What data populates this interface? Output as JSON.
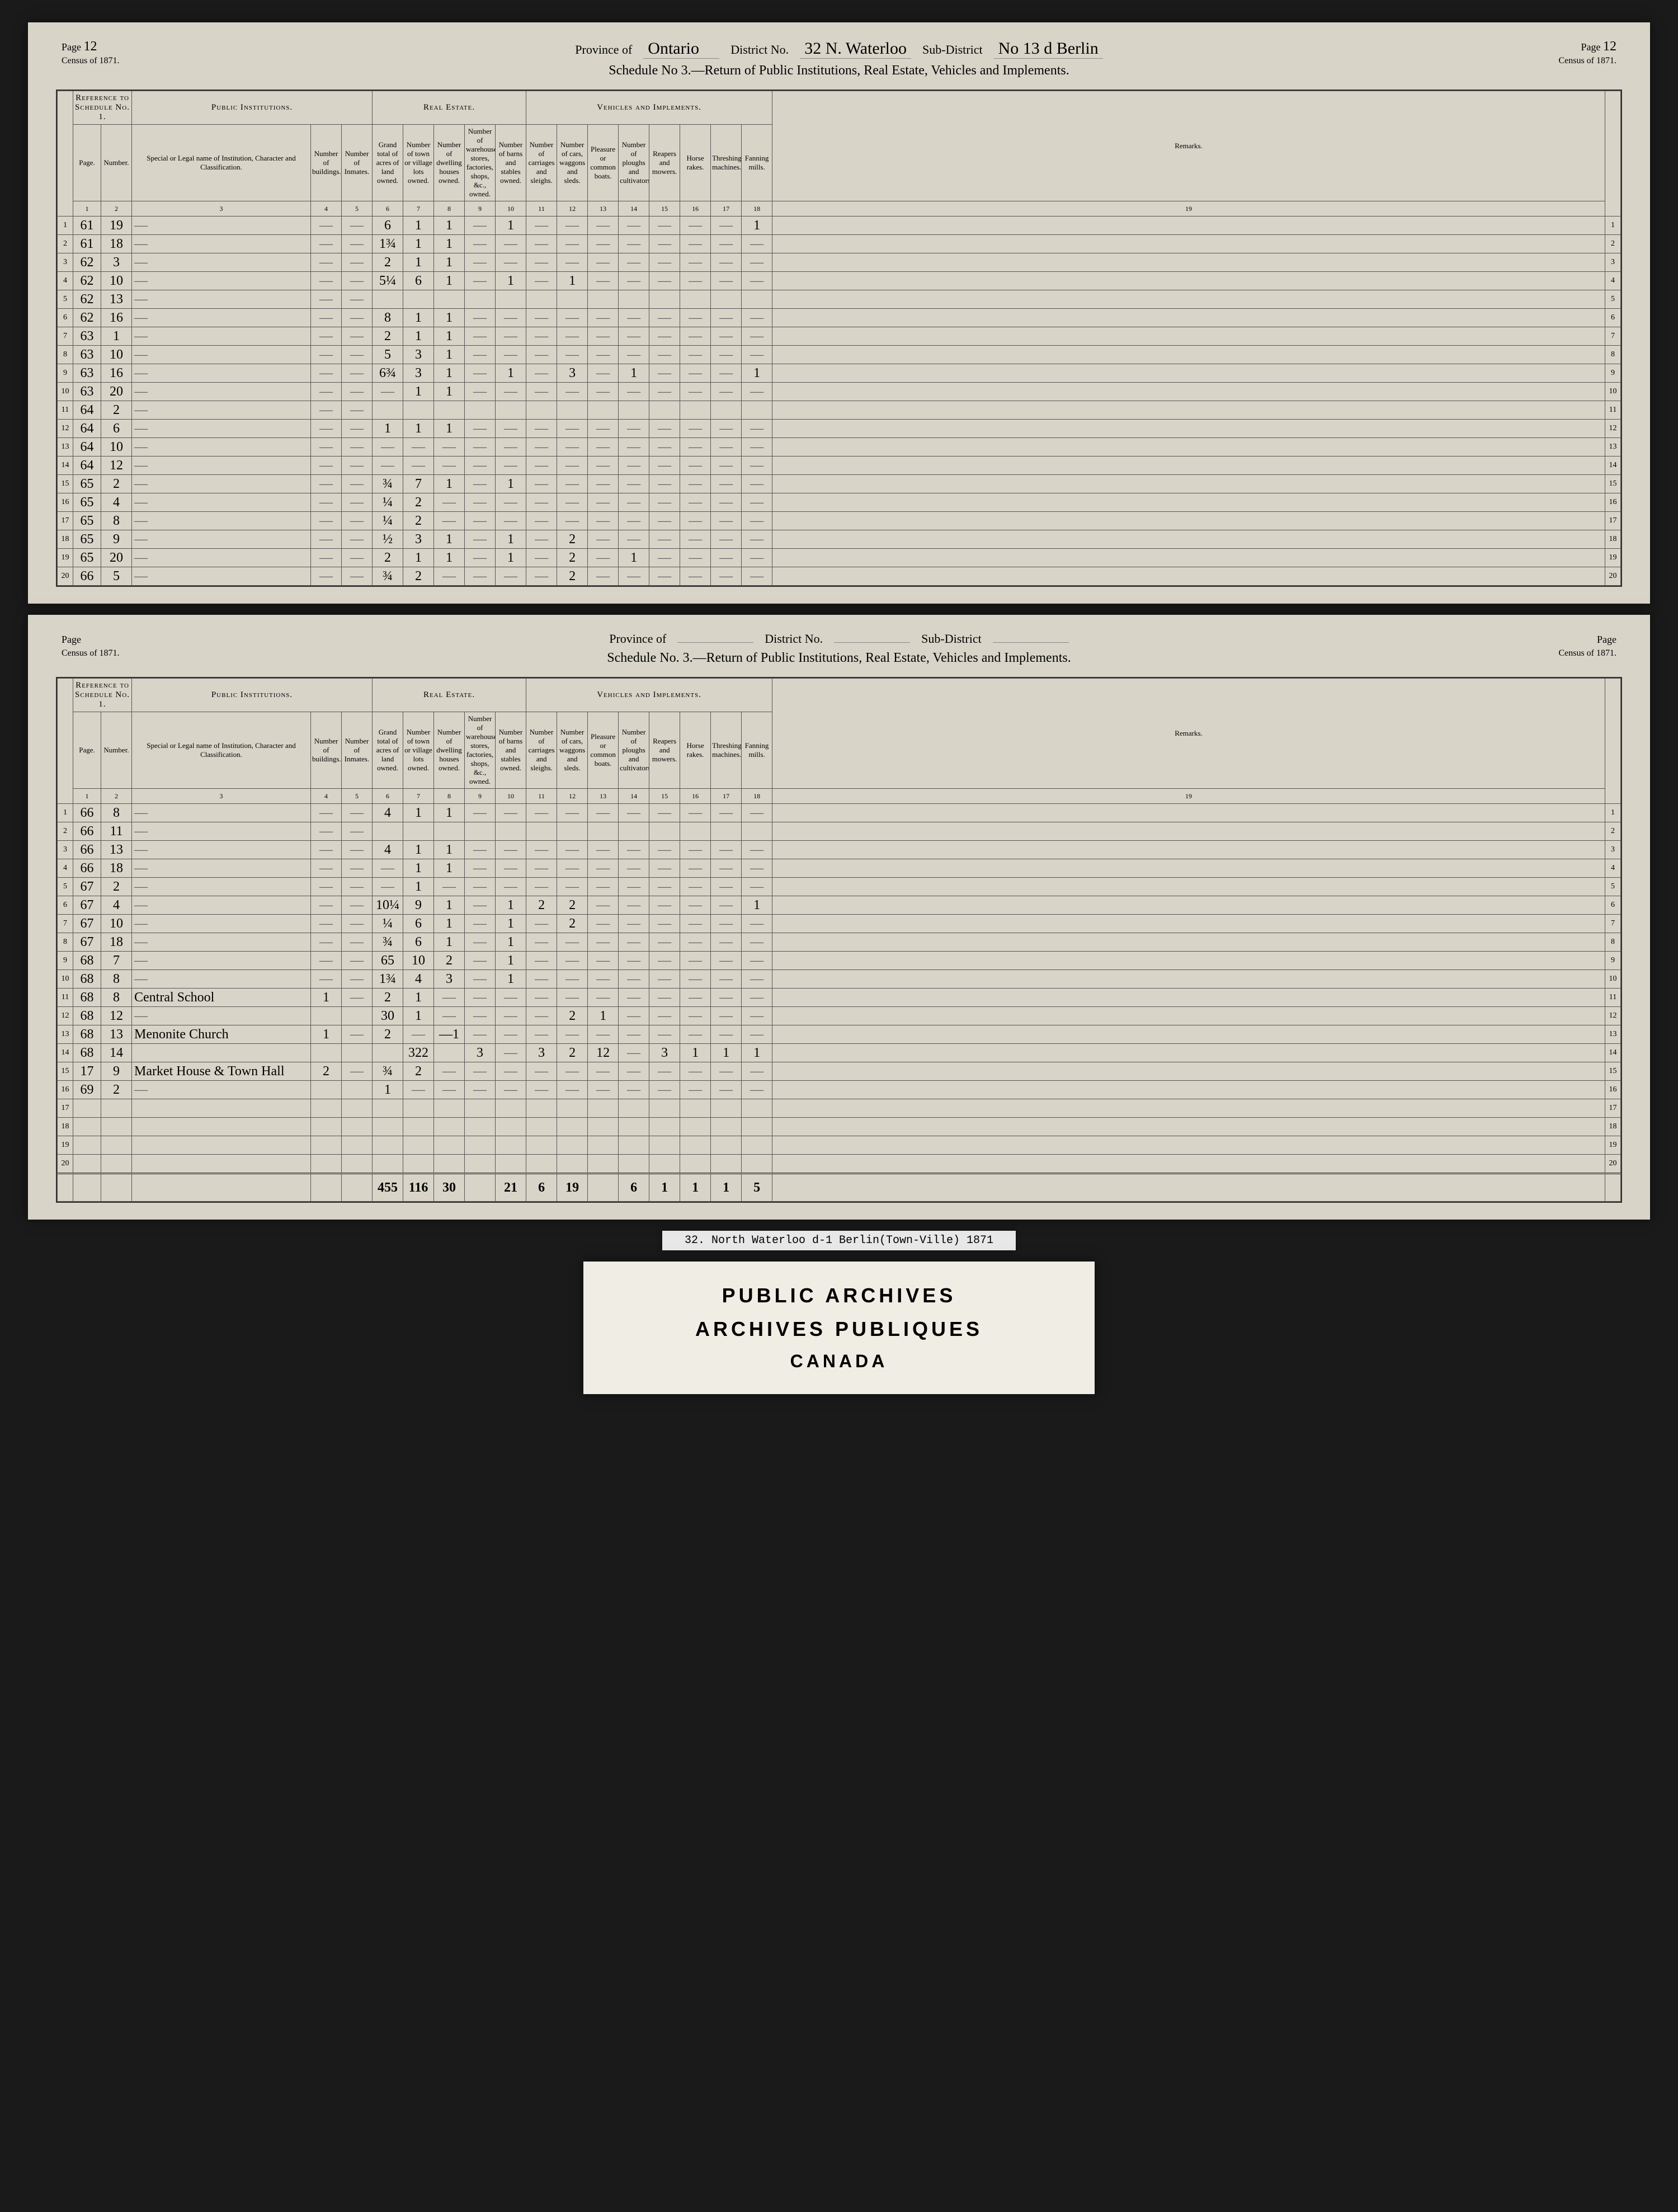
{
  "page1": {
    "page_num_left": "12",
    "province_label": "Province of",
    "province": "Ontario",
    "district_label": "District No.",
    "district": "32 N. Waterloo",
    "subdistrict_label": "Sub-District",
    "subdistrict": "No 13 d Berlin",
    "page_num_right": "12",
    "census_label": "Census of 1871.",
    "title": "Schedule No 3.—Return of Public Institutions, Real Estate, Vehicles and Implements.",
    "section_headers": {
      "ref": "Reference to Schedule No. 1.",
      "pub": "Public Institutions.",
      "real": "Real Estate.",
      "veh": "Vehicles and Implements."
    },
    "col_headers": {
      "c1": "Page.",
      "c2": "Number.",
      "c3": "Special or Legal name of Institution, Character and Classification.",
      "c4": "Number of buildings.",
      "c5": "Number of Inmates.",
      "c6": "Grand total of acres of land owned.",
      "c7": "Number of town or village lots owned.",
      "c8": "Number of dwelling houses owned.",
      "c9": "Number of warehouses, stores, factories, shops, &c., owned.",
      "c10": "Number of barns and stables owned.",
      "c11": "Number of carriages and sleighs.",
      "c12": "Number of cars, waggons and sleds.",
      "c13": "Pleasure or common boats.",
      "c14": "Number of ploughs and cultivators.",
      "c15": "Reapers and mowers.",
      "c16": "Horse rakes.",
      "c17": "Threshing machines.",
      "c18": "Fanning mills.",
      "c19": "Remarks."
    },
    "rows": [
      {
        "n": "1",
        "page": "61",
        "num": "19",
        "inst": "—",
        "c4": "—",
        "c5": "—",
        "c6": "6",
        "c7": "1",
        "c8": "1",
        "c9": "—",
        "c10": "1",
        "c11": "—",
        "c12": "—",
        "c13": "—",
        "c14": "—",
        "c15": "—",
        "c16": "—",
        "c17": "—",
        "c18": "1"
      },
      {
        "n": "2",
        "page": "61",
        "num": "18",
        "inst": "—",
        "c4": "—",
        "c5": "—",
        "c6": "1¾",
        "c7": "1",
        "c8": "1",
        "c9": "—",
        "c10": "—",
        "c11": "—",
        "c12": "—",
        "c13": "—",
        "c14": "—",
        "c15": "—",
        "c16": "—",
        "c17": "—",
        "c18": "—"
      },
      {
        "n": "3",
        "page": "62",
        "num": "3",
        "inst": "—",
        "c4": "—",
        "c5": "—",
        "c6": "2",
        "c7": "1",
        "c8": "1",
        "c9": "—",
        "c10": "—",
        "c11": "—",
        "c12": "—",
        "c13": "—",
        "c14": "—",
        "c15": "—",
        "c16": "—",
        "c17": "—",
        "c18": "—"
      },
      {
        "n": "4",
        "page": "62",
        "num": "10",
        "inst": "—",
        "c4": "—",
        "c5": "—",
        "c6": "5¼",
        "c7": "6",
        "c8": "1",
        "c9": "—",
        "c10": "1",
        "c11": "—",
        "c12": "1",
        "c13": "—",
        "c14": "—",
        "c15": "—",
        "c16": "—",
        "c17": "—",
        "c18": "—"
      },
      {
        "n": "5",
        "page": "62",
        "num": "13",
        "inst": "—",
        "c4": "—",
        "c5": "—",
        "c6": "",
        "c7": "",
        "c8": "",
        "c9": "",
        "c10": "",
        "c11": "",
        "c12": "",
        "c13": "",
        "c14": "",
        "c15": "",
        "c16": "",
        "c17": "",
        "c18": ""
      },
      {
        "n": "6",
        "page": "62",
        "num": "16",
        "inst": "—",
        "c4": "—",
        "c5": "—",
        "c6": "8",
        "c7": "1",
        "c8": "1",
        "c9": "—",
        "c10": "—",
        "c11": "—",
        "c12": "—",
        "c13": "—",
        "c14": "—",
        "c15": "—",
        "c16": "—",
        "c17": "—",
        "c18": "—"
      },
      {
        "n": "7",
        "page": "63",
        "num": "1",
        "inst": "—",
        "c4": "—",
        "c5": "—",
        "c6": "2",
        "c7": "1",
        "c8": "1",
        "c9": "—",
        "c10": "—",
        "c11": "—",
        "c12": "—",
        "c13": "—",
        "c14": "—",
        "c15": "—",
        "c16": "—",
        "c17": "—",
        "c18": "—"
      },
      {
        "n": "8",
        "page": "63",
        "num": "10",
        "inst": "—",
        "c4": "—",
        "c5": "—",
        "c6": "5",
        "c7": "3",
        "c8": "1",
        "c9": "—",
        "c10": "—",
        "c11": "—",
        "c12": "—",
        "c13": "—",
        "c14": "—",
        "c15": "—",
        "c16": "—",
        "c17": "—",
        "c18": "—"
      },
      {
        "n": "9",
        "page": "63",
        "num": "16",
        "inst": "—",
        "c4": "—",
        "c5": "—",
        "c6": "6¾",
        "c7": "3",
        "c8": "1",
        "c9": "—",
        "c10": "1",
        "c11": "—",
        "c12": "3",
        "c13": "—",
        "c14": "1",
        "c15": "—",
        "c16": "—",
        "c17": "—",
        "c18": "1"
      },
      {
        "n": "10",
        "page": "63",
        "num": "20",
        "inst": "—",
        "c4": "—",
        "c5": "—",
        "c6": "—",
        "c7": "1",
        "c8": "1",
        "c9": "—",
        "c10": "—",
        "c11": "—",
        "c12": "—",
        "c13": "—",
        "c14": "—",
        "c15": "—",
        "c16": "—",
        "c17": "—",
        "c18": "—"
      },
      {
        "n": "11",
        "page": "64",
        "num": "2",
        "inst": "—",
        "c4": "—",
        "c5": "—",
        "c6": "",
        "c7": "",
        "c8": "",
        "c9": "",
        "c10": "",
        "c11": "",
        "c12": "",
        "c13": "",
        "c14": "",
        "c15": "",
        "c16": "",
        "c17": "",
        "c18": ""
      },
      {
        "n": "12",
        "page": "64",
        "num": "6",
        "inst": "—",
        "c4": "—",
        "c5": "—",
        "c6": "1",
        "c7": "1",
        "c8": "1",
        "c9": "—",
        "c10": "—",
        "c11": "—",
        "c12": "—",
        "c13": "—",
        "c14": "—",
        "c15": "—",
        "c16": "—",
        "c17": "—",
        "c18": "—"
      },
      {
        "n": "13",
        "page": "64",
        "num": "10",
        "inst": "—",
        "c4": "—",
        "c5": "—",
        "c6": "—",
        "c7": "—",
        "c8": "—",
        "c9": "—",
        "c10": "—",
        "c11": "—",
        "c12": "—",
        "c13": "—",
        "c14": "—",
        "c15": "—",
        "c16": "—",
        "c17": "—",
        "c18": "—"
      },
      {
        "n": "14",
        "page": "64",
        "num": "12",
        "inst": "—",
        "c4": "—",
        "c5": "—",
        "c6": "—",
        "c7": "—",
        "c8": "—",
        "c9": "—",
        "c10": "—",
        "c11": "—",
        "c12": "—",
        "c13": "—",
        "c14": "—",
        "c15": "—",
        "c16": "—",
        "c17": "—",
        "c18": "—"
      },
      {
        "n": "15",
        "page": "65",
        "num": "2",
        "inst": "—",
        "c4": "—",
        "c5": "—",
        "c6": "¾",
        "c7": "7",
        "c8": "1",
        "c9": "—",
        "c10": "1",
        "c11": "—",
        "c12": "—",
        "c13": "—",
        "c14": "—",
        "c15": "—",
        "c16": "—",
        "c17": "—",
        "c18": "—"
      },
      {
        "n": "16",
        "page": "65",
        "num": "4",
        "inst": "—",
        "c4": "—",
        "c5": "—",
        "c6": "¼",
        "c7": "2",
        "c8": "—",
        "c9": "—",
        "c10": "—",
        "c11": "—",
        "c12": "—",
        "c13": "—",
        "c14": "—",
        "c15": "—",
        "c16": "—",
        "c17": "—",
        "c18": "—"
      },
      {
        "n": "17",
        "page": "65",
        "num": "8",
        "inst": "—",
        "c4": "—",
        "c5": "—",
        "c6": "¼",
        "c7": "2",
        "c8": "—",
        "c9": "—",
        "c10": "—",
        "c11": "—",
        "c12": "—",
        "c13": "—",
        "c14": "—",
        "c15": "—",
        "c16": "—",
        "c17": "—",
        "c18": "—"
      },
      {
        "n": "18",
        "page": "65",
        "num": "9",
        "inst": "—",
        "c4": "—",
        "c5": "—",
        "c6": "½",
        "c7": "3",
        "c8": "1",
        "c9": "—",
        "c10": "1",
        "c11": "—",
        "c12": "2",
        "c13": "—",
        "c14": "—",
        "c15": "—",
        "c16": "—",
        "c17": "—",
        "c18": "—"
      },
      {
        "n": "19",
        "page": "65",
        "num": "20",
        "inst": "—",
        "c4": "—",
        "c5": "—",
        "c6": "2",
        "c7": "1",
        "c8": "1",
        "c9": "—",
        "c10": "1",
        "c11": "—",
        "c12": "2",
        "c13": "—",
        "c14": "1",
        "c15": "—",
        "c16": "—",
        "c17": "—",
        "c18": "—"
      },
      {
        "n": "20",
        "page": "66",
        "num": "5",
        "inst": "—",
        "c4": "—",
        "c5": "—",
        "c6": "¾",
        "c7": "2",
        "c8": "—",
        "c9": "—",
        "c10": "—",
        "c11": "—",
        "c12": "2",
        "c13": "—",
        "c14": "—",
        "c15": "—",
        "c16": "—",
        "c17": "—",
        "c18": "—"
      }
    ]
  },
  "page2": {
    "page_num_left": "",
    "province_label": "Province of",
    "province": "",
    "district_label": "District No.",
    "district": "",
    "subdistrict_label": "Sub-District",
    "subdistrict": "",
    "page_num_right": "",
    "census_label": "Census of 1871.",
    "title": "Schedule No. 3.—Return of Public Institutions, Real Estate, Vehicles and Implements.",
    "rows": [
      {
        "n": "1",
        "page": "66",
        "num": "8",
        "inst": "—",
        "c4": "—",
        "c5": "—",
        "c6": "4",
        "c7": "1",
        "c8": "1",
        "c9": "—",
        "c10": "—",
        "c11": "—",
        "c12": "—",
        "c13": "—",
        "c14": "—",
        "c15": "—",
        "c16": "—",
        "c17": "—",
        "c18": "—"
      },
      {
        "n": "2",
        "page": "66",
        "num": "11",
        "inst": "—",
        "c4": "—",
        "c5": "—",
        "c6": "",
        "c7": "",
        "c8": "",
        "c9": "",
        "c10": "",
        "c11": "",
        "c12": "",
        "c13": "",
        "c14": "",
        "c15": "",
        "c16": "",
        "c17": "",
        "c18": ""
      },
      {
        "n": "3",
        "page": "66",
        "num": "13",
        "inst": "—",
        "c4": "—",
        "c5": "—",
        "c6": "4",
        "c7": "1",
        "c8": "1",
        "c9": "—",
        "c10": "—",
        "c11": "—",
        "c12": "—",
        "c13": "—",
        "c14": "—",
        "c15": "—",
        "c16": "—",
        "c17": "—",
        "c18": "—"
      },
      {
        "n": "4",
        "page": "66",
        "num": "18",
        "inst": "—",
        "c4": "—",
        "c5": "—",
        "c6": "—",
        "c7": "1",
        "c8": "1",
        "c9": "—",
        "c10": "—",
        "c11": "—",
        "c12": "—",
        "c13": "—",
        "c14": "—",
        "c15": "—",
        "c16": "—",
        "c17": "—",
        "c18": "—"
      },
      {
        "n": "5",
        "page": "67",
        "num": "2",
        "inst": "—",
        "c4": "—",
        "c5": "—",
        "c6": "—",
        "c7": "1",
        "c8": "—",
        "c9": "—",
        "c10": "—",
        "c11": "—",
        "c12": "—",
        "c13": "—",
        "c14": "—",
        "c15": "—",
        "c16": "—",
        "c17": "—",
        "c18": "—"
      },
      {
        "n": "6",
        "page": "67",
        "num": "4",
        "inst": "—",
        "c4": "—",
        "c5": "—",
        "c6": "10¼",
        "c7": "9",
        "c8": "1",
        "c9": "—",
        "c10": "1",
        "c11": "2",
        "c12": "2",
        "c13": "—",
        "c14": "—",
        "c15": "—",
        "c16": "—",
        "c17": "—",
        "c18": "1"
      },
      {
        "n": "7",
        "page": "67",
        "num": "10",
        "inst": "—",
        "c4": "—",
        "c5": "—",
        "c6": "¼",
        "c7": "6",
        "c8": "1",
        "c9": "—",
        "c10": "1",
        "c11": "—",
        "c12": "2",
        "c13": "—",
        "c14": "—",
        "c15": "—",
        "c16": "—",
        "c17": "—",
        "c18": "—"
      },
      {
        "n": "8",
        "page": "67",
        "num": "18",
        "inst": "—",
        "c4": "—",
        "c5": "—",
        "c6": "¾",
        "c7": "6",
        "c8": "1",
        "c9": "—",
        "c10": "1",
        "c11": "—",
        "c12": "—",
        "c13": "—",
        "c14": "—",
        "c15": "—",
        "c16": "—",
        "c17": "—",
        "c18": "—"
      },
      {
        "n": "9",
        "page": "68",
        "num": "7",
        "inst": "—",
        "c4": "—",
        "c5": "—",
        "c6": "65",
        "c7": "10",
        "c8": "2",
        "c9": "—",
        "c10": "1",
        "c11": "—",
        "c12": "—",
        "c13": "—",
        "c14": "—",
        "c15": "—",
        "c16": "—",
        "c17": "—",
        "c18": "—"
      },
      {
        "n": "10",
        "page": "68",
        "num": "8",
        "inst": "—",
        "c4": "—",
        "c5": "—",
        "c6": "1¾",
        "c7": "4",
        "c8": "3",
        "c9": "—",
        "c10": "1",
        "c11": "—",
        "c12": "—",
        "c13": "—",
        "c14": "—",
        "c15": "—",
        "c16": "—",
        "c17": "—",
        "c18": "—"
      },
      {
        "n": "11",
        "page": "68",
        "num": "8",
        "inst": "Central School",
        "c4": "1",
        "c5": "—",
        "c6": "2",
        "c7": "1",
        "c8": "—",
        "c9": "—",
        "c10": "—",
        "c11": "—",
        "c12": "—",
        "c13": "—",
        "c14": "—",
        "c15": "—",
        "c16": "—",
        "c17": "—",
        "c18": "—"
      },
      {
        "n": "12",
        "page": "68",
        "num": "12",
        "inst": "—",
        "c4": "",
        "c5": "",
        "c6": "30",
        "c7": "1",
        "c8": "—",
        "c9": "—",
        "c10": "—",
        "c11": "—",
        "c12": "2",
        "c13": "1",
        "c14": "—",
        "c15": "—",
        "c16": "—",
        "c17": "—",
        "c18": "—"
      },
      {
        "n": "13",
        "page": "68",
        "num": "13",
        "inst": "Menonite Church",
        "c4": "1",
        "c5": "—",
        "c6": "2",
        "c7": "—",
        "c8": "—1",
        "c9": "—",
        "c10": "—",
        "c11": "—",
        "c12": "—",
        "c13": "—",
        "c14": "—",
        "c15": "—",
        "c16": "—",
        "c17": "—",
        "c18": "—"
      },
      {
        "n": "14",
        "page": "68",
        "num": "14",
        "inst": "",
        "c4": "",
        "c5": "",
        "c6": "",
        "c7": "322",
        "c8": "",
        "c9": "3",
        "c10": "—",
        "c11": "3",
        "c12": "2",
        "c13": "12",
        "c14": "—",
        "c15": "3",
        "c16": "1",
        "c17": "1",
        "c18": "1"
      },
      {
        "n": "15",
        "page": "17",
        "num": "9",
        "inst": "Market House & Town Hall",
        "c4": "2",
        "c5": "—",
        "c6": "¾",
        "c7": "2",
        "c8": "—",
        "c9": "—",
        "c10": "—",
        "c11": "—",
        "c12": "—",
        "c13": "—",
        "c14": "—",
        "c15": "—",
        "c16": "—",
        "c17": "—",
        "c18": "—"
      },
      {
        "n": "16",
        "page": "69",
        "num": "2",
        "inst": "—",
        "c4": "",
        "c5": "",
        "c6": "1",
        "c7": "—",
        "c8": "—",
        "c9": "—",
        "c10": "—",
        "c11": "—",
        "c12": "—",
        "c13": "—",
        "c14": "—",
        "c15": "—",
        "c16": "—",
        "c17": "—",
        "c18": "—"
      },
      {
        "n": "17",
        "page": "",
        "num": "",
        "inst": "",
        "c4": "",
        "c5": "",
        "c6": "",
        "c7": "",
        "c8": "",
        "c9": "",
        "c10": "",
        "c11": "",
        "c12": "",
        "c13": "",
        "c14": "",
        "c15": "",
        "c16": "",
        "c17": "",
        "c18": ""
      },
      {
        "n": "18",
        "page": "",
        "num": "",
        "inst": "",
        "c4": "",
        "c5": "",
        "c6": "",
        "c7": "",
        "c8": "",
        "c9": "",
        "c10": "",
        "c11": "",
        "c12": "",
        "c13": "",
        "c14": "",
        "c15": "",
        "c16": "",
        "c17": "",
        "c18": ""
      },
      {
        "n": "19",
        "page": "",
        "num": "",
        "inst": "",
        "c4": "",
        "c5": "",
        "c6": "",
        "c7": "",
        "c8": "",
        "c9": "",
        "c10": "",
        "c11": "",
        "c12": "",
        "c13": "",
        "c14": "",
        "c15": "",
        "c16": "",
        "c17": "",
        "c18": ""
      },
      {
        "n": "20",
        "page": "",
        "num": "",
        "inst": "",
        "c4": "",
        "c5": "",
        "c6": "",
        "c7": "",
        "c8": "",
        "c9": "",
        "c10": "",
        "c11": "",
        "c12": "",
        "c13": "",
        "c14": "",
        "c15": "",
        "c16": "",
        "c17": "",
        "c18": ""
      }
    ],
    "totals": {
      "c6": "455",
      "c7": "116",
      "c8": "30",
      "c9": "",
      "c10": "21",
      "c11": "6",
      "c12": "19",
      "c13": "",
      "c14": "6",
      "c15": "1",
      "c16": "1",
      "c17": "1",
      "c18": "5"
    }
  },
  "label_strip": "32. North Waterloo    d-1  Berlin(Town-Ville) 1871",
  "archives": {
    "l1": "PUBLIC ARCHIVES",
    "l2": "ARCHIVES PUBLIQUES",
    "l3": "CANADA"
  }
}
